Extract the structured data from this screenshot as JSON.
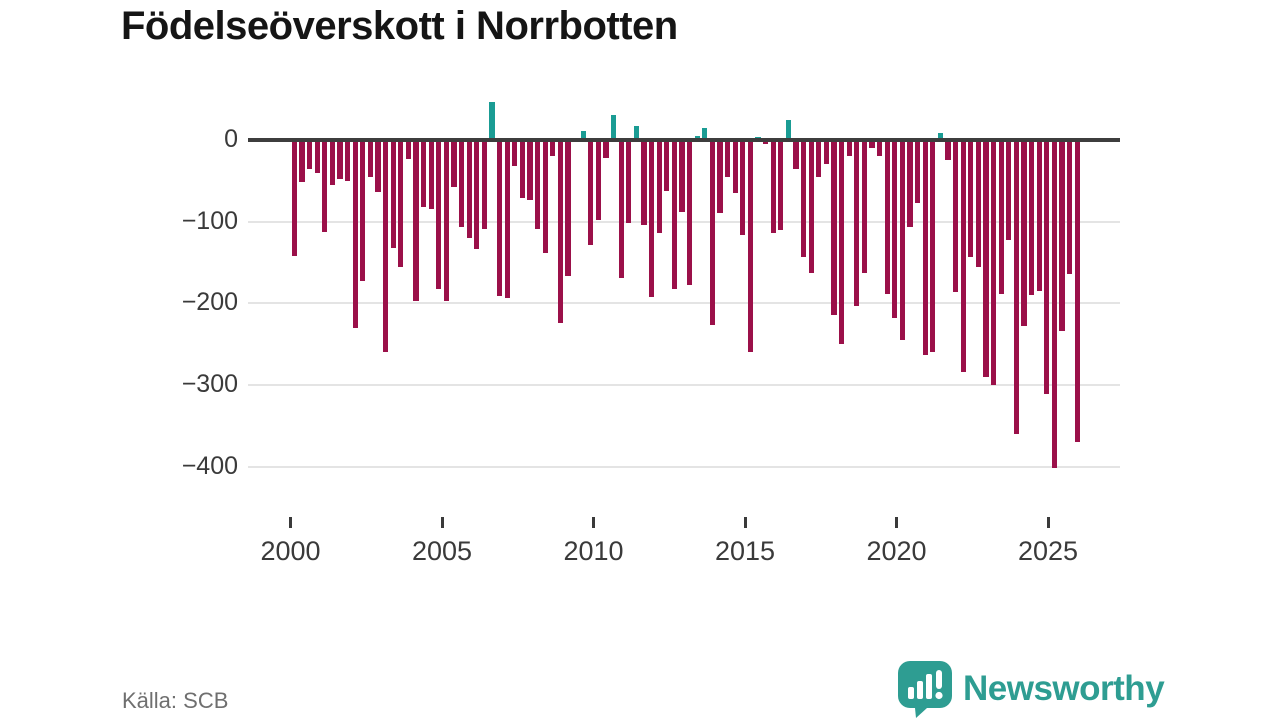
{
  "title": "Födelseöverskott i Norrbotten",
  "source": "Källa: SCB",
  "branding": {
    "name": "Newsworthy",
    "logo_icon": "speech-bubble-with-bar-chart-and-exclamation",
    "color": "#2e9d92"
  },
  "colors": {
    "negative_bar": "#9b1049",
    "positive_bar": "#1a9c94",
    "axis_line": "#3d3d3d",
    "gridline": "#e4e4e4",
    "tick_label": "#3a3a3a",
    "source_text": "#6f6f6f",
    "title_text": "#151515",
    "background": "#ffffff"
  },
  "chart_data": {
    "type": "bar",
    "title": "Födelseöverskott i Norrbotten",
    "xlabel": "",
    "ylabel": "",
    "grid": "horizontal",
    "legend": "none",
    "ylim": [
      -420,
      60
    ],
    "y_ticks": [
      {
        "value": 0,
        "label": "0"
      },
      {
        "value": -100,
        "label": "−100"
      },
      {
        "value": -200,
        "label": "−200"
      },
      {
        "value": -300,
        "label": "−300"
      },
      {
        "value": -400,
        "label": "−400"
      }
    ],
    "x_ticks": [
      {
        "year": 2000,
        "label": "2000"
      },
      {
        "year": 2005,
        "label": "2005"
      },
      {
        "year": 2010,
        "label": "2010"
      },
      {
        "year": 2015,
        "label": "2015"
      },
      {
        "year": 2020,
        "label": "2020"
      },
      {
        "year": 2025,
        "label": "2025"
      }
    ],
    "categories": [
      "2000 K1",
      "2000 K2",
      "2000 K3",
      "2000 K4",
      "2001 K1",
      "2001 K2",
      "2001 K3",
      "2001 K4",
      "2002 K1",
      "2002 K2",
      "2002 K3",
      "2002 K4",
      "2003 K1",
      "2003 K2",
      "2003 K3",
      "2003 K4",
      "2004 K1",
      "2004 K2",
      "2004 K3",
      "2004 K4",
      "2005 K1",
      "2005 K2",
      "2005 K3",
      "2005 K4",
      "2006 K1",
      "2006 K2",
      "2006 K3",
      "2006 K4",
      "2007 K1",
      "2007 K2",
      "2007 K3",
      "2007 K4",
      "2008 K1",
      "2008 K2",
      "2008 K3",
      "2008 K4",
      "2009 K1",
      "2009 K2",
      "2009 K3",
      "2009 K4",
      "2010 K1",
      "2010 K2",
      "2010 K3",
      "2010 K4",
      "2011 K1",
      "2011 K2",
      "2011 K3",
      "2011 K4",
      "2012 K1",
      "2012 K2",
      "2012 K3",
      "2012 K4",
      "2013 K1",
      "2013 K2",
      "2013 K3",
      "2013 K4",
      "2014 K1",
      "2014 K2",
      "2014 K3",
      "2014 K4",
      "2015 K1",
      "2015 K2",
      "2015 K3",
      "2015 K4",
      "2016 K1",
      "2016 K2",
      "2016 K3",
      "2016 K4",
      "2017 K1",
      "2017 K2",
      "2017 K3",
      "2017 K4",
      "2018 K1",
      "2018 K2",
      "2018 K3",
      "2018 K4",
      "2019 K1",
      "2019 K2",
      "2019 K3",
      "2019 K4",
      "2020 K1",
      "2020 K2",
      "2020 K3",
      "2020 K4",
      "2021 K1",
      "2021 K2",
      "2021 K3",
      "2021 K4",
      "2022 K1",
      "2022 K2",
      "2022 K3",
      "2022 K4",
      "2023 K1",
      "2023 K2",
      "2023 K3",
      "2023 K4",
      "2024 K1",
      "2024 K2",
      "2024 K3",
      "2024 K4",
      "2025 K1",
      "2025 K2",
      "2025 K3",
      "2025 K4"
    ],
    "values": [
      -142,
      -52,
      -35,
      -41,
      -113,
      -55,
      -48,
      -50,
      -230,
      -173,
      -45,
      -64,
      -260,
      -132,
      -156,
      -23,
      -197,
      -82,
      -84,
      -183,
      -197,
      -58,
      -106,
      -120,
      -134,
      -109,
      46,
      -191,
      -193,
      -32,
      -71,
      -73,
      -109,
      -138,
      -19,
      -224,
      -167,
      3,
      11,
      -129,
      -98,
      -22,
      31,
      -169,
      -102,
      17,
      -104,
      -192,
      -114,
      -63,
      -182,
      -88,
      -178,
      5,
      15,
      -227,
      -90,
      -45,
      -65,
      -116,
      -260,
      4,
      -5,
      -114,
      -110,
      24,
      -35,
      -143,
      -163,
      -45,
      -30,
      -214,
      -250,
      -20,
      -203,
      -163,
      -10,
      -20,
      -189,
      -218,
      -245,
      -106,
      -77,
      -263,
      -260,
      9,
      -25,
      -186,
      -284,
      -143,
      -155,
      -290,
      -300,
      -188,
      -122,
      -360,
      -228,
      -190,
      -185,
      -311,
      -402,
      -234,
      -164,
      -370
    ]
  }
}
